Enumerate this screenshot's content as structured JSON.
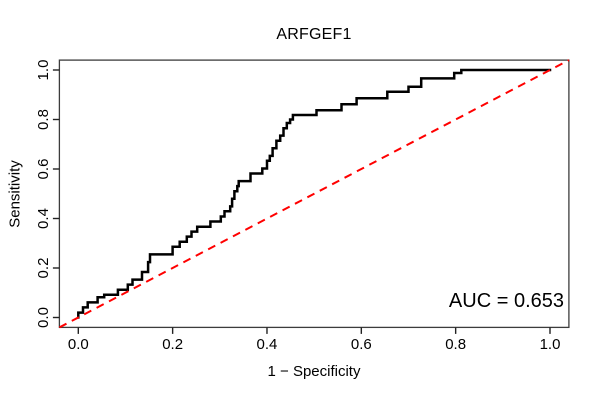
{
  "chart_data": {
    "type": "line",
    "subtype": "roc-step-curve",
    "title": "ARFGEF1",
    "xlabel": "1 − Specificity",
    "ylabel": "Sensitivity",
    "xlim": [
      0,
      1
    ],
    "ylim": [
      0,
      1
    ],
    "x_ticks": [
      0,
      0.2,
      0.4,
      0.6,
      0.8,
      1
    ],
    "x_tick_labels": [
      "0.0",
      "0.2",
      "0.4",
      "0.6",
      "0.8",
      "1.0"
    ],
    "y_ticks": [
      0,
      0.2,
      0.4,
      0.6,
      0.8,
      1
    ],
    "y_tick_labels": [
      "0.0",
      "0.2",
      "0.4",
      "0.6",
      "0.8",
      "1.0"
    ],
    "grid": false,
    "legend": "none",
    "auc": 0.653,
    "annotations": [
      {
        "text": "AUC = 0.653",
        "x": 0.86,
        "y": 0.07,
        "color": "#000000"
      }
    ],
    "series": [
      {
        "name": "roc-curve",
        "draw": "step",
        "color": "#000000",
        "line_width": 2.5,
        "dash": "solid",
        "points": [
          [
            0.0,
            0.0
          ],
          [
            0.0,
            0.02
          ],
          [
            0.01,
            0.02
          ],
          [
            0.01,
            0.041
          ],
          [
            0.02,
            0.041
          ],
          [
            0.02,
            0.061
          ],
          [
            0.041,
            0.061
          ],
          [
            0.041,
            0.082
          ],
          [
            0.055,
            0.082
          ],
          [
            0.055,
            0.092
          ],
          [
            0.084,
            0.092
          ],
          [
            0.084,
            0.112
          ],
          [
            0.105,
            0.112
          ],
          [
            0.105,
            0.133
          ],
          [
            0.115,
            0.133
          ],
          [
            0.115,
            0.153
          ],
          [
            0.135,
            0.153
          ],
          [
            0.135,
            0.184
          ],
          [
            0.148,
            0.184
          ],
          [
            0.148,
            0.224
          ],
          [
            0.152,
            0.224
          ],
          [
            0.152,
            0.255
          ],
          [
            0.2,
            0.255
          ],
          [
            0.2,
            0.286
          ],
          [
            0.215,
            0.286
          ],
          [
            0.215,
            0.306
          ],
          [
            0.23,
            0.306
          ],
          [
            0.23,
            0.327
          ],
          [
            0.24,
            0.327
          ],
          [
            0.24,
            0.347
          ],
          [
            0.252,
            0.347
          ],
          [
            0.252,
            0.367
          ],
          [
            0.28,
            0.367
          ],
          [
            0.28,
            0.388
          ],
          [
            0.302,
            0.388
          ],
          [
            0.302,
            0.408
          ],
          [
            0.31,
            0.408
          ],
          [
            0.31,
            0.429
          ],
          [
            0.322,
            0.429
          ],
          [
            0.322,
            0.449
          ],
          [
            0.326,
            0.449
          ],
          [
            0.326,
            0.48
          ],
          [
            0.331,
            0.48
          ],
          [
            0.331,
            0.51
          ],
          [
            0.337,
            0.51
          ],
          [
            0.337,
            0.531
          ],
          [
            0.34,
            0.531
          ],
          [
            0.34,
            0.551
          ],
          [
            0.365,
            0.551
          ],
          [
            0.365,
            0.582
          ],
          [
            0.39,
            0.582
          ],
          [
            0.39,
            0.602
          ],
          [
            0.4,
            0.602
          ],
          [
            0.4,
            0.633
          ],
          [
            0.406,
            0.633
          ],
          [
            0.406,
            0.653
          ],
          [
            0.412,
            0.653
          ],
          [
            0.412,
            0.684
          ],
          [
            0.42,
            0.684
          ],
          [
            0.42,
            0.714
          ],
          [
            0.428,
            0.714
          ],
          [
            0.428,
            0.735
          ],
          [
            0.435,
            0.735
          ],
          [
            0.435,
            0.765
          ],
          [
            0.442,
            0.765
          ],
          [
            0.442,
            0.786
          ],
          [
            0.449,
            0.786
          ],
          [
            0.449,
            0.8
          ],
          [
            0.455,
            0.8
          ],
          [
            0.455,
            0.818
          ],
          [
            0.505,
            0.818
          ],
          [
            0.505,
            0.837
          ],
          [
            0.558,
            0.837
          ],
          [
            0.558,
            0.862
          ],
          [
            0.59,
            0.862
          ],
          [
            0.59,
            0.886
          ],
          [
            0.655,
            0.886
          ],
          [
            0.655,
            0.912
          ],
          [
            0.7,
            0.912
          ],
          [
            0.7,
            0.932
          ],
          [
            0.727,
            0.932
          ],
          [
            0.727,
            0.966
          ],
          [
            0.797,
            0.966
          ],
          [
            0.797,
            0.988
          ],
          [
            0.812,
            0.988
          ],
          [
            0.812,
            1.0
          ],
          [
            1.0,
            1.0
          ]
        ]
      },
      {
        "name": "chance-diagonal",
        "draw": "line",
        "color": "#ff0000",
        "line_width": 2,
        "dash": "dashed",
        "spans_full_box": true,
        "points": [
          [
            0,
            0
          ],
          [
            1,
            1
          ]
        ]
      }
    ]
  },
  "colors": {
    "background": "#ffffff",
    "frame": "#3c3c3c",
    "text": "#000000",
    "roc_curve": "#000000",
    "diagonal": "#ff0000"
  }
}
